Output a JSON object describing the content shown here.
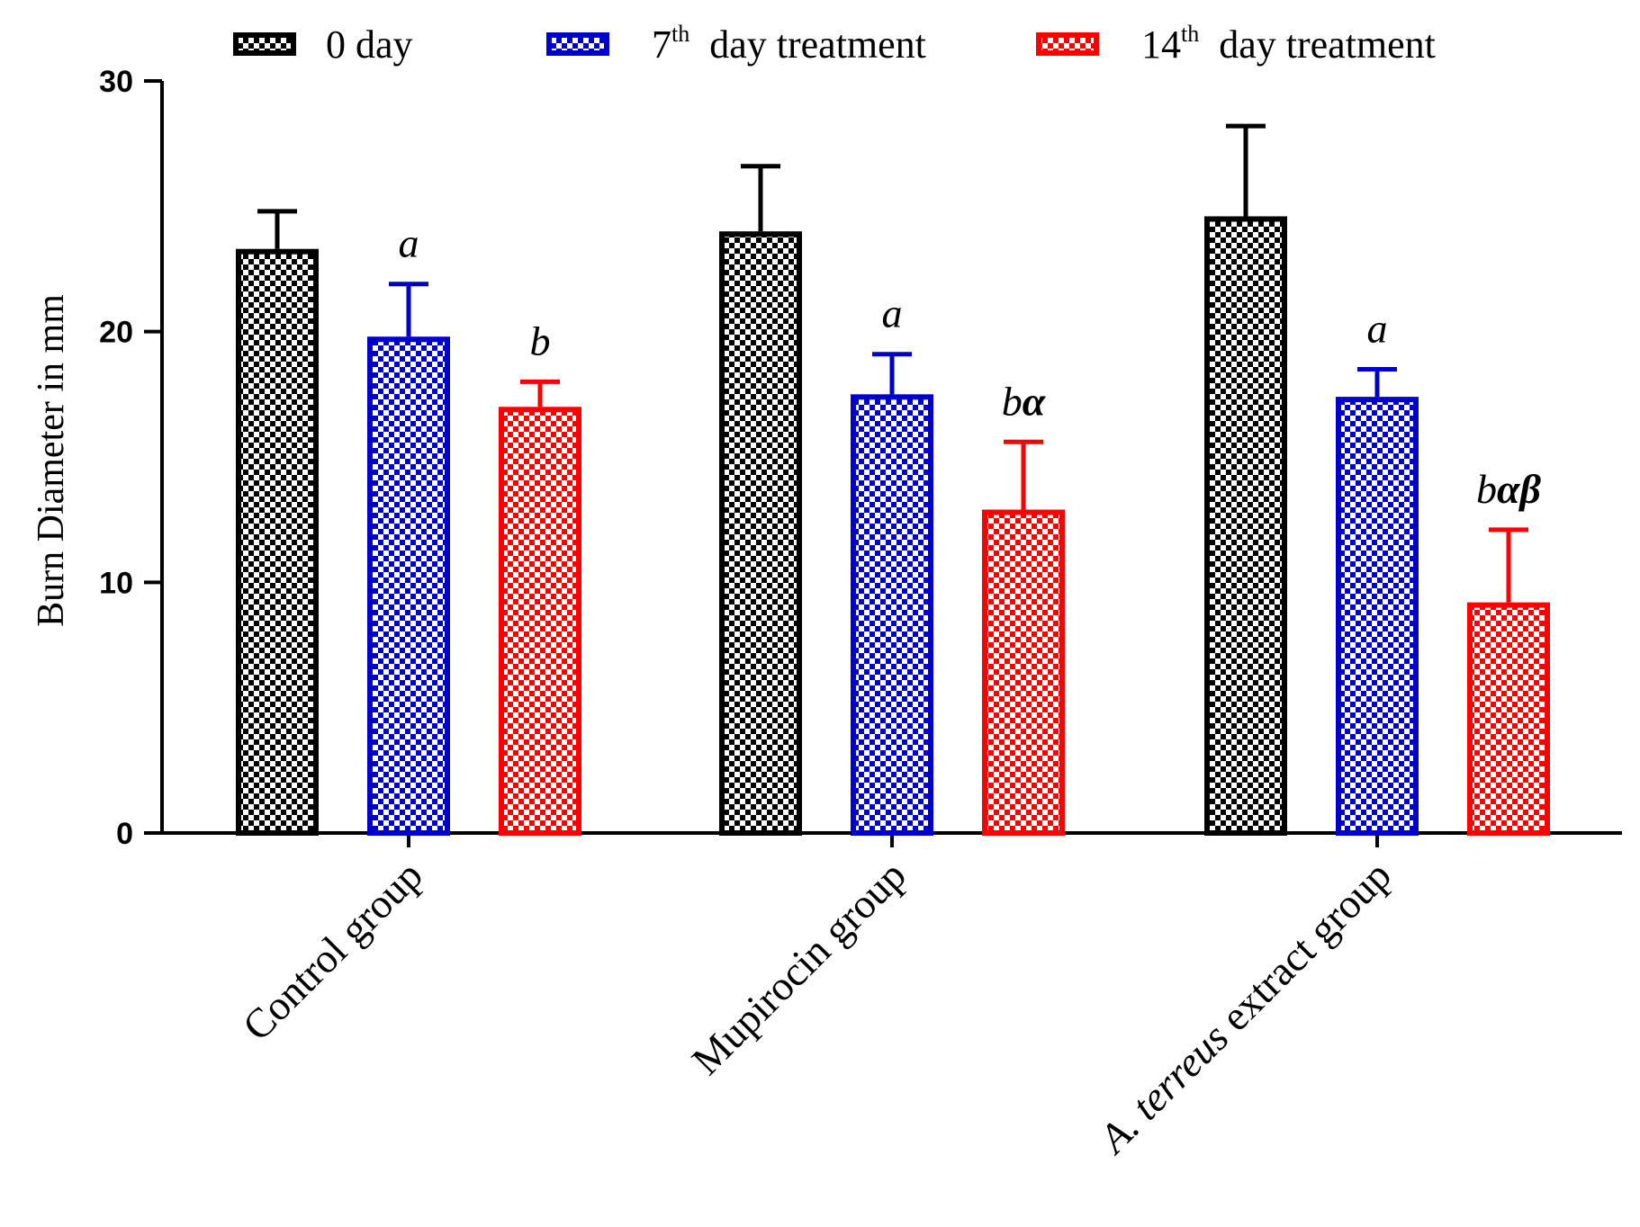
{
  "chart_data": {
    "type": "bar",
    "title": "",
    "xlabel": "",
    "ylabel": "Burn Diameter in mm",
    "ylim": [
      0,
      30
    ],
    "yticks": [
      0,
      10,
      20,
      30
    ],
    "categories": [
      "Control group",
      "Mupirocin group",
      "A. terreus extract group"
    ],
    "category_label_parts": [
      [
        {
          "text": "Control group",
          "italic": false
        }
      ],
      [
        {
          "text": "Mupirocin group",
          "italic": false
        }
      ],
      [
        {
          "text": "A. terreus",
          "italic": true
        },
        {
          "text": "  extract group",
          "italic": false
        }
      ]
    ],
    "series": [
      {
        "name": "0 day",
        "legend_main": "0 day",
        "legend_sup": "",
        "legend_rest": "",
        "color": "#000000",
        "values": [
          23.3,
          24.0,
          24.6
        ],
        "errors": [
          1.5,
          2.6,
          3.6
        ],
        "annotations": [
          "",
          "",
          ""
        ]
      },
      {
        "name": "7th day treatment",
        "legend_main": "7",
        "legend_sup": "th",
        "legend_rest": "  day treatment",
        "color": "#0000cc",
        "values": [
          19.8,
          17.5,
          17.4
        ],
        "errors": [
          2.1,
          1.6,
          1.1
        ],
        "annotations": [
          "a",
          "a",
          "a"
        ]
      },
      {
        "name": "14th day treatment",
        "legend_main": "14",
        "legend_sup": "th",
        "legend_rest": "  day treatment",
        "color": "#ff0000",
        "values": [
          17.0,
          12.9,
          9.2
        ],
        "errors": [
          1.0,
          2.7,
          2.9
        ],
        "annotations": [
          "b",
          "bα",
          "bαβ"
        ]
      }
    ],
    "legend_position": "top"
  }
}
